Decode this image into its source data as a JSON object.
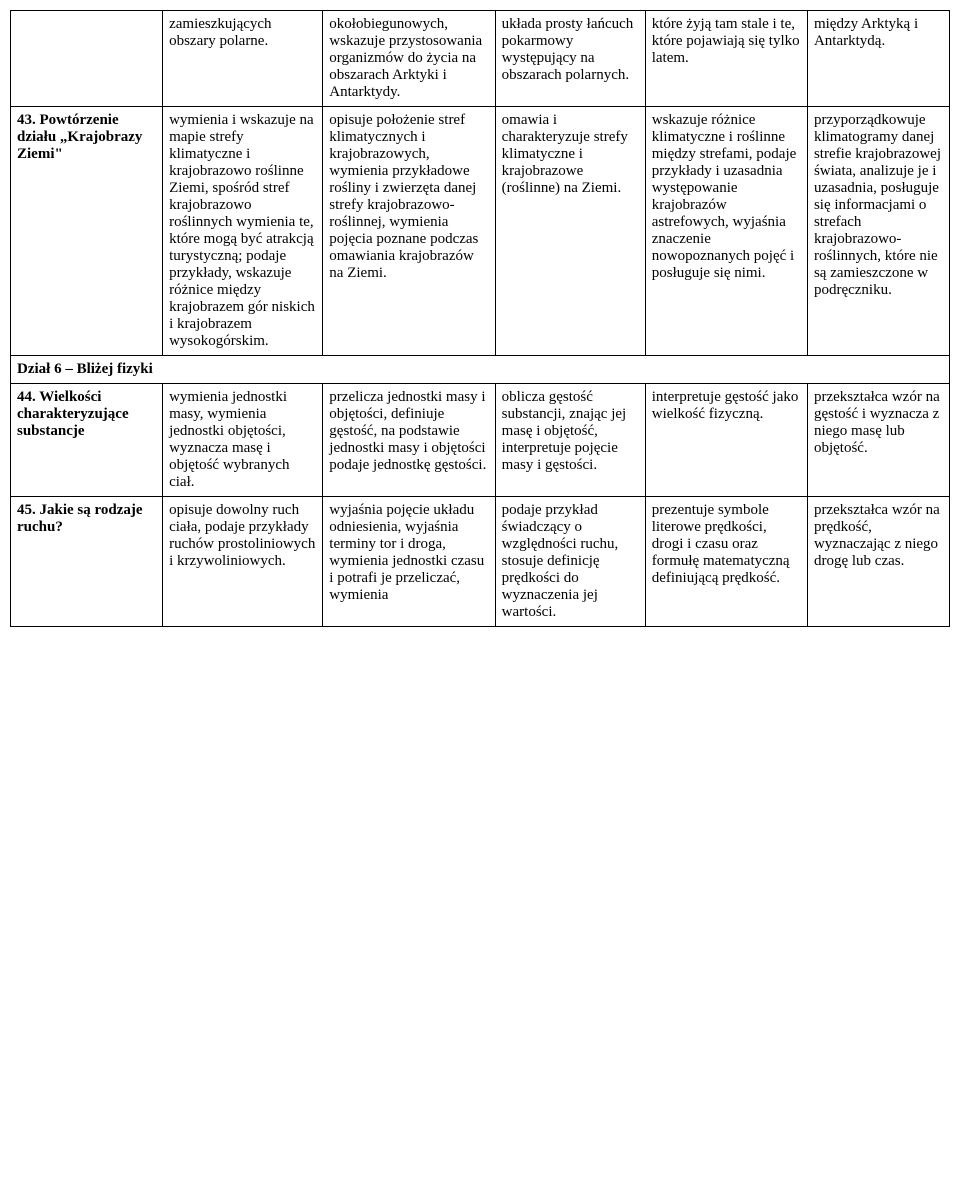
{
  "rows": {
    "row0": {
      "c0": "",
      "c1": "zamieszkujących obszary polarne.",
      "c2": "okołobiegunowych, wskazuje przystosowania organizmów do życia na obszarach Arktyki i Antarktydy.",
      "c3": "układa prosty łańcuch pokarmowy występujący na obszarach polarnych.",
      "c4": "które żyją tam stale i te, które pojawiają się tylko latem.",
      "c5": "między Arktyką i Antarktydą."
    },
    "row1": {
      "c0": "43. Powtórzenie działu „Krajobrazy Ziemi\"",
      "c1": "wymienia i wskazuje na mapie strefy klimatyczne i krajobrazowo roślinne Ziemi, spośród stref krajobrazowo roślinnych wymienia te, które mogą być atrakcją turystyczną; podaje przykłady, wskazuje różnice między krajobrazem gór niskich i krajobrazem wysokogórskim.",
      "c2": "opisuje położenie stref klimatycznych i krajobrazowych, wymienia przykładowe rośliny i zwierzęta danej strefy krajobrazowo-roślinnej, wymienia pojęcia poznane podczas omawiania krajobrazów na Ziemi.",
      "c3": "omawia i charakteryzuje strefy klimatyczne i krajobrazowe (roślinne) na Ziemi.",
      "c4": "wskazuje różnice klimatyczne i roślinne między strefami, podaje przykłady i uzasadnia występowanie krajobrazów astrefowych, wyjaśnia znaczenie nowopoznanych pojęć i posługuje się nimi.",
      "c5": "przyporządkowuje klimatogramy danej strefie krajobrazowej świata, analizuje je i uzasadnia, posługuje się informacjami o strefach krajobrazowo-roślinnych, które nie są zamieszczone w podręczniku."
    },
    "section6": "Dział 6 – Bliżej fizyki",
    "row2": {
      "c0": "44. Wielkości charakteryzujące substancje",
      "c1": "wymienia jednostki masy, wymienia jednostki objętości, wyznacza masę i objętość wybranych ciał.",
      "c2": "przelicza jednostki masy i objętości, definiuje gęstość, na podstawie jednostki masy i objętości podaje jednostkę gęstości.",
      "c3": "oblicza gęstość substancji, znając jej masę i objętość, interpretuje pojęcie masy i gęstości.",
      "c4": "interpretuje gęstość jako wielkość fizyczną.",
      "c5": "przekształca wzór na gęstość i wyznacza z niego masę lub objętość."
    },
    "row3": {
      "c0": "45. Jakie są rodzaje ruchu?",
      "c1": "opisuje dowolny ruch ciała, podaje przykłady ruchów prostoliniowych i krzywoliniowych.",
      "c2": "wyjaśnia pojęcie układu odniesienia, wyjaśnia terminy tor i droga, wymienia jednostki czasu i potrafi je przeliczać, wymienia",
      "c3": "podaje przykład świadczący o względności ruchu, stosuje definicję prędkości do wyznaczenia jej wartości.",
      "c4": "prezentuje symbole literowe prędkości, drogi i czasu oraz formułę matematyczną definiującą prędkość.",
      "c5": "przekształca wzór na prędkość, wyznaczając z niego drogę lub czas."
    }
  }
}
